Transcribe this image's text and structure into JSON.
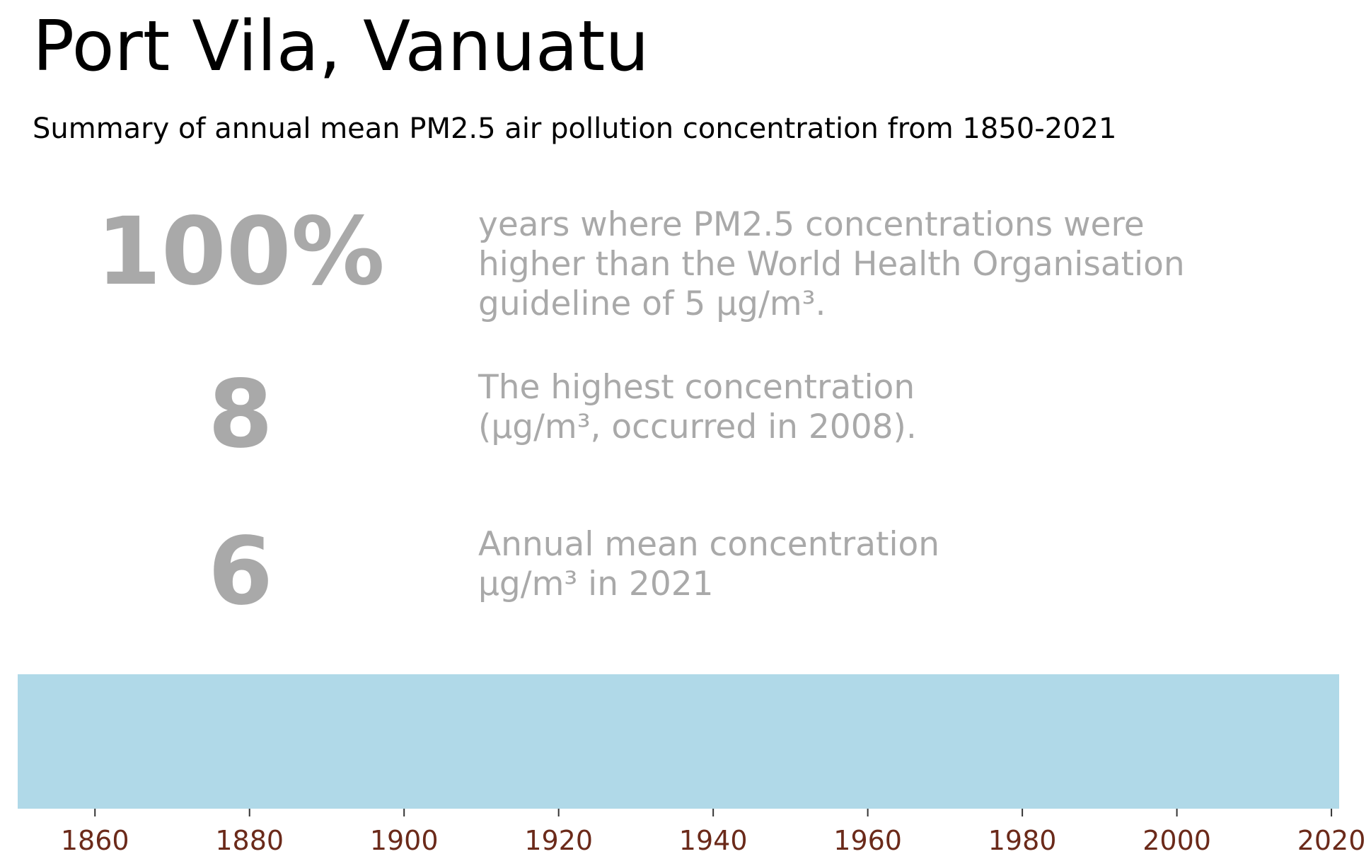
{
  "title": "Port Vila, Vanuatu",
  "subtitle": "Summary of annual mean PM2.5 air pollution concentration from 1850-2021",
  "stat_color": "#a9a9a9",
  "stats": [
    {
      "value": "100%",
      "description": "years where PM2.5 concentrations were\nhigher than the World Health Organisation\nguideline of 5 µg/m³."
    },
    {
      "value": "8",
      "description": "The highest concentration\n(µg/m³, occurred in 2008)."
    },
    {
      "value": "6",
      "description": "Annual mean concentration\nµg/m³ in 2021"
    }
  ],
  "chart_data": {
    "type": "heatmap",
    "title": "",
    "xlabel": "",
    "ylabel": "",
    "xlim": [
      1850,
      2021
    ],
    "x_ticks": [
      "1860",
      "1880",
      "1900",
      "1920",
      "1940",
      "1960",
      "1980",
      "2000",
      "2020"
    ],
    "tick_color": "#6b2a1a",
    "stripe_color": "#b0d9e8",
    "series": [
      {
        "start_year": 1850,
        "end_year": 2021
      }
    ],
    "grid": false
  }
}
